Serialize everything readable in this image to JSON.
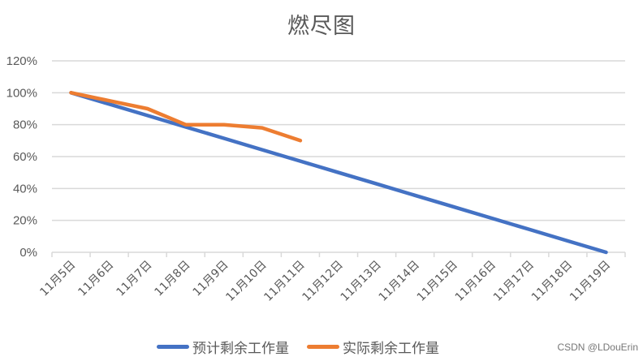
{
  "chart_data": {
    "type": "line",
    "title": "燃尽图",
    "xlabel": "",
    "ylabel": "",
    "ylim": [
      0,
      1.2
    ],
    "yticks": [
      "0%",
      "20%",
      "40%",
      "60%",
      "80%",
      "100%",
      "120%"
    ],
    "grid": true,
    "legend_position": "bottom",
    "categories": [
      "11月5日",
      "11月6日",
      "11月7日",
      "11月8日",
      "11月9日",
      "11月10日",
      "11月11日",
      "11月12日",
      "11月13日",
      "11月14日",
      "11月15日",
      "11月16日",
      "11月17日",
      "11月18日",
      "11月19日"
    ],
    "series": [
      {
        "name": "预计剩余工作量",
        "color": "#4472C4",
        "values": [
          1.0,
          0.9286,
          0.8571,
          0.7857,
          0.7143,
          0.6429,
          0.5714,
          0.5,
          0.4286,
          0.3571,
          0.2857,
          0.2143,
          0.1429,
          0.0714,
          0.0
        ]
      },
      {
        "name": "实际剩余工作量",
        "color": "#ED7D31",
        "values": [
          1.0,
          0.95,
          0.9,
          0.8,
          0.8,
          0.78,
          0.7,
          null,
          null,
          null,
          null,
          null,
          null,
          null,
          null
        ]
      }
    ]
  },
  "watermark": "CSDN @LDouErin"
}
